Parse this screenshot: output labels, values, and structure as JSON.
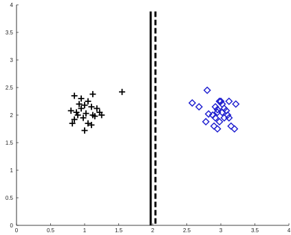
{
  "chart_data": {
    "type": "scatter",
    "title": "",
    "xlabel": "",
    "ylabel": "",
    "xlim": [
      0,
      4
    ],
    "ylim": [
      0,
      4
    ],
    "grid": false,
    "legend": "none",
    "x_ticks": [
      0,
      0.5,
      1,
      1.5,
      2,
      2.5,
      3,
      3.5,
      4
    ],
    "x_tick_labels": [
      "0",
      "0.5",
      "1",
      "1.5",
      "2",
      "2.5",
      "3",
      "3.5",
      "4"
    ],
    "y_ticks": [
      0,
      0.5,
      1,
      1.5,
      2,
      2.5,
      3,
      3.5,
      4
    ],
    "y_tick_labels": [
      "0",
      "0.5",
      "1",
      "1.5",
      "2",
      "2.5",
      "3",
      "3.5",
      "4"
    ],
    "series": [
      {
        "marker": "plus",
        "color": "#000000",
        "points": [
          [
            0.85,
            2.35
          ],
          [
            0.95,
            2.3
          ],
          [
            1.12,
            2.38
          ],
          [
            1.55,
            2.42
          ],
          [
            1.05,
            2.25
          ],
          [
            1.0,
            2.18
          ],
          [
            1.1,
            2.15
          ],
          [
            1.18,
            2.12
          ],
          [
            0.95,
            2.12
          ],
          [
            0.88,
            2.05
          ],
          [
            0.8,
            2.08
          ],
          [
            0.9,
            2.0
          ],
          [
            1.02,
            2.03
          ],
          [
            1.12,
            2.0
          ],
          [
            1.22,
            2.05
          ],
          [
            1.25,
            2.0
          ],
          [
            0.85,
            1.92
          ],
          [
            0.98,
            1.95
          ],
          [
            0.82,
            1.85
          ],
          [
            1.05,
            1.85
          ],
          [
            1.1,
            1.82
          ],
          [
            1.0,
            1.72
          ],
          [
            1.15,
            1.98
          ],
          [
            0.92,
            2.2
          ]
        ]
      },
      {
        "marker": "diamond",
        "color": "#1f1fd0",
        "points": [
          [
            2.8,
            2.45
          ],
          [
            2.58,
            2.22
          ],
          [
            2.68,
            2.15
          ],
          [
            2.92,
            2.15
          ],
          [
            2.98,
            2.25
          ],
          [
            3.02,
            2.2
          ],
          [
            3.12,
            2.25
          ],
          [
            3.22,
            2.2
          ],
          [
            2.95,
            2.1
          ],
          [
            3.05,
            2.12
          ],
          [
            3.02,
            2.05
          ],
          [
            2.95,
            2.05
          ],
          [
            2.88,
            2.0
          ],
          [
            2.82,
            2.02
          ],
          [
            2.92,
            1.95
          ],
          [
            3.05,
            1.95
          ],
          [
            3.1,
            2.0
          ],
          [
            3.12,
            1.95
          ],
          [
            2.78,
            1.88
          ],
          [
            2.98,
            1.88
          ],
          [
            3.15,
            1.8
          ],
          [
            2.9,
            1.8
          ],
          [
            2.95,
            1.75
          ],
          [
            3.2,
            1.75
          ],
          [
            3.0,
            2.25
          ],
          [
            3.08,
            2.08
          ]
        ]
      }
    ],
    "vertical_lines": [
      {
        "x": 1.97,
        "style": "solid",
        "color": "#000000"
      },
      {
        "x": 2.04,
        "style": "dashed",
        "color": "#000000"
      }
    ]
  }
}
